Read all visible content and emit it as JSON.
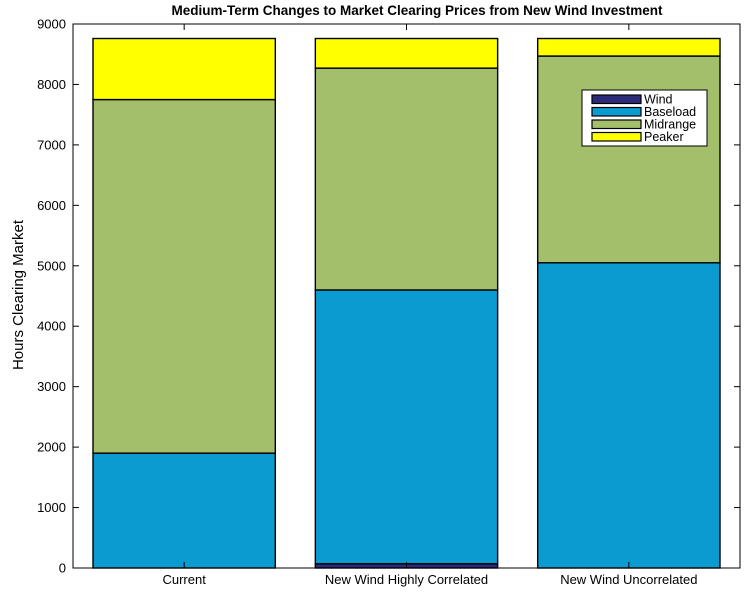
{
  "chart_data": {
    "type": "bar",
    "stacked": true,
    "title": "Medium-Term Changes to Market Clearing Prices from New Wind Investment",
    "xlabel": "",
    "ylabel": "Hours Clearing Market",
    "ylim": [
      0,
      9000
    ],
    "yticks": [
      0,
      1000,
      2000,
      3000,
      4000,
      5000,
      6000,
      7000,
      8000,
      9000
    ],
    "categories": [
      "Current",
      "New Wind Highly Correlated",
      "New Wind Uncorrelated"
    ],
    "series": [
      {
        "name": "Wind",
        "color": "#2d2a7a",
        "values": [
          0,
          70,
          0
        ]
      },
      {
        "name": "Baseload",
        "color": "#0a9bd0",
        "values": [
          1900,
          4530,
          5050
        ]
      },
      {
        "name": "Midrange",
        "color": "#a4bf6c",
        "values": [
          5850,
          3670,
          3420
        ]
      },
      {
        "name": "Peaker",
        "color": "#ffff00",
        "values": [
          1010,
          490,
          290
        ]
      }
    ],
    "legend_position": "top-right",
    "grid": false
  }
}
